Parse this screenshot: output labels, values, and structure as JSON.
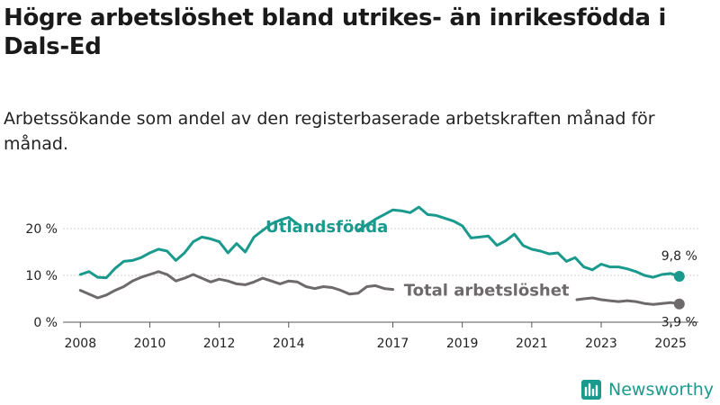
{
  "title": "Högre arbetslöshet bland utrikes- än inrikesfödda i Dals-Ed",
  "subtitle": "Arbetssökande som andel av den registerbaserade arbetskraften månad för månad.",
  "brand": "Newsworthy",
  "chart_data": {
    "type": "line",
    "title": "Högre arbetslöshet bland utrikes- än inrikesfödda i Dals-Ed",
    "xlabel": "",
    "ylabel": "",
    "xlim": [
      2007.5,
      2025.8
    ],
    "ylim": [
      0,
      25
    ],
    "y_ticks": [
      0,
      10,
      20
    ],
    "y_tick_labels": [
      "0 %",
      "10 %",
      "20 %"
    ],
    "x_ticks": [
      2008,
      2010,
      2012,
      2014,
      2017,
      2019,
      2021,
      2023,
      2025
    ],
    "grid": "horizontal",
    "series": [
      {
        "name": "Utlandsfödda",
        "color": "#1a9a8d",
        "end_label": "9,8 %",
        "points": [
          [
            2008.0,
            10.2
          ],
          [
            2008.25,
            10.8
          ],
          [
            2008.5,
            9.6
          ],
          [
            2008.75,
            9.5
          ],
          [
            2009.0,
            11.5
          ],
          [
            2009.25,
            13.0
          ],
          [
            2009.5,
            13.2
          ],
          [
            2009.75,
            13.8
          ],
          [
            2010.0,
            14.8
          ],
          [
            2010.25,
            15.6
          ],
          [
            2010.5,
            15.2
          ],
          [
            2010.75,
            13.2
          ],
          [
            2011.0,
            14.8
          ],
          [
            2011.25,
            17.2
          ],
          [
            2011.5,
            18.2
          ],
          [
            2011.75,
            17.8
          ],
          [
            2012.0,
            17.2
          ],
          [
            2012.25,
            14.8
          ],
          [
            2012.5,
            16.8
          ],
          [
            2012.75,
            15.0
          ],
          [
            2013.0,
            18.2
          ],
          [
            2013.25,
            19.6
          ],
          [
            2013.5,
            21.0
          ],
          [
            2013.75,
            21.8
          ],
          [
            2014.0,
            22.4
          ],
          [
            2014.25,
            21.0
          ],
          null,
          [
            2016.0,
            19.6
          ],
          [
            2016.25,
            20.8
          ],
          [
            2016.5,
            22.0
          ],
          [
            2016.75,
            23.0
          ],
          [
            2017.0,
            24.0
          ],
          [
            2017.25,
            23.8
          ],
          [
            2017.5,
            23.4
          ],
          [
            2017.75,
            24.6
          ],
          [
            2018.0,
            23.0
          ],
          [
            2018.25,
            22.8
          ],
          [
            2018.5,
            22.2
          ],
          [
            2018.75,
            21.6
          ],
          [
            2019.0,
            20.6
          ],
          [
            2019.25,
            18.0
          ],
          [
            2019.5,
            18.2
          ],
          [
            2019.75,
            18.4
          ],
          [
            2020.0,
            16.4
          ],
          [
            2020.25,
            17.4
          ],
          [
            2020.5,
            18.8
          ],
          [
            2020.75,
            16.4
          ],
          [
            2021.0,
            15.6
          ],
          [
            2021.25,
            15.2
          ],
          [
            2021.5,
            14.6
          ],
          [
            2021.75,
            14.8
          ],
          [
            2022.0,
            13.0
          ],
          [
            2022.25,
            13.8
          ],
          [
            2022.5,
            11.8
          ],
          [
            2022.75,
            11.2
          ],
          [
            2023.0,
            12.4
          ],
          [
            2023.25,
            11.8
          ],
          [
            2023.5,
            11.8
          ],
          [
            2023.75,
            11.4
          ],
          [
            2024.0,
            10.8
          ],
          [
            2024.25,
            10.0
          ],
          [
            2024.5,
            9.6
          ],
          [
            2024.75,
            10.2
          ],
          [
            2025.0,
            10.4
          ],
          [
            2025.25,
            9.8
          ]
        ]
      },
      {
        "name": "Total arbetslöshet",
        "color": "#6e6a6c",
        "end_label": "3,9 %",
        "points": [
          [
            2008.0,
            6.8
          ],
          [
            2008.25,
            6.0
          ],
          [
            2008.5,
            5.2
          ],
          [
            2008.75,
            5.8
          ],
          [
            2009.0,
            6.8
          ],
          [
            2009.25,
            7.6
          ],
          [
            2009.5,
            8.8
          ],
          [
            2009.75,
            9.6
          ],
          [
            2010.0,
            10.2
          ],
          [
            2010.25,
            10.8
          ],
          [
            2010.5,
            10.2
          ],
          [
            2010.75,
            8.8
          ],
          [
            2011.0,
            9.4
          ],
          [
            2011.25,
            10.2
          ],
          [
            2011.5,
            9.4
          ],
          [
            2011.75,
            8.6
          ],
          [
            2012.0,
            9.2
          ],
          [
            2012.25,
            8.8
          ],
          [
            2012.5,
            8.2
          ],
          [
            2012.75,
            8.0
          ],
          [
            2013.0,
            8.6
          ],
          [
            2013.25,
            9.4
          ],
          [
            2013.5,
            8.8
          ],
          [
            2013.75,
            8.2
          ],
          [
            2014.0,
            8.8
          ],
          [
            2014.25,
            8.6
          ],
          [
            2014.5,
            7.6
          ],
          [
            2014.75,
            7.2
          ],
          [
            2015.0,
            7.6
          ],
          [
            2015.25,
            7.4
          ],
          [
            2015.5,
            6.8
          ],
          [
            2015.75,
            6.0
          ],
          [
            2016.0,
            6.2
          ],
          [
            2016.25,
            7.6
          ],
          [
            2016.5,
            7.8
          ],
          [
            2016.75,
            7.2
          ],
          [
            2017.0,
            7.0
          ],
          null,
          [
            2022.3,
            4.8
          ],
          [
            2022.5,
            5.0
          ],
          [
            2022.75,
            5.2
          ],
          [
            2023.0,
            4.8
          ],
          [
            2023.25,
            4.6
          ],
          [
            2023.5,
            4.4
          ],
          [
            2023.75,
            4.6
          ],
          [
            2024.0,
            4.4
          ],
          [
            2024.25,
            4.0
          ],
          [
            2024.5,
            3.8
          ],
          [
            2024.75,
            4.0
          ],
          [
            2025.0,
            4.2
          ],
          [
            2025.25,
            3.9
          ]
        ]
      }
    ]
  }
}
